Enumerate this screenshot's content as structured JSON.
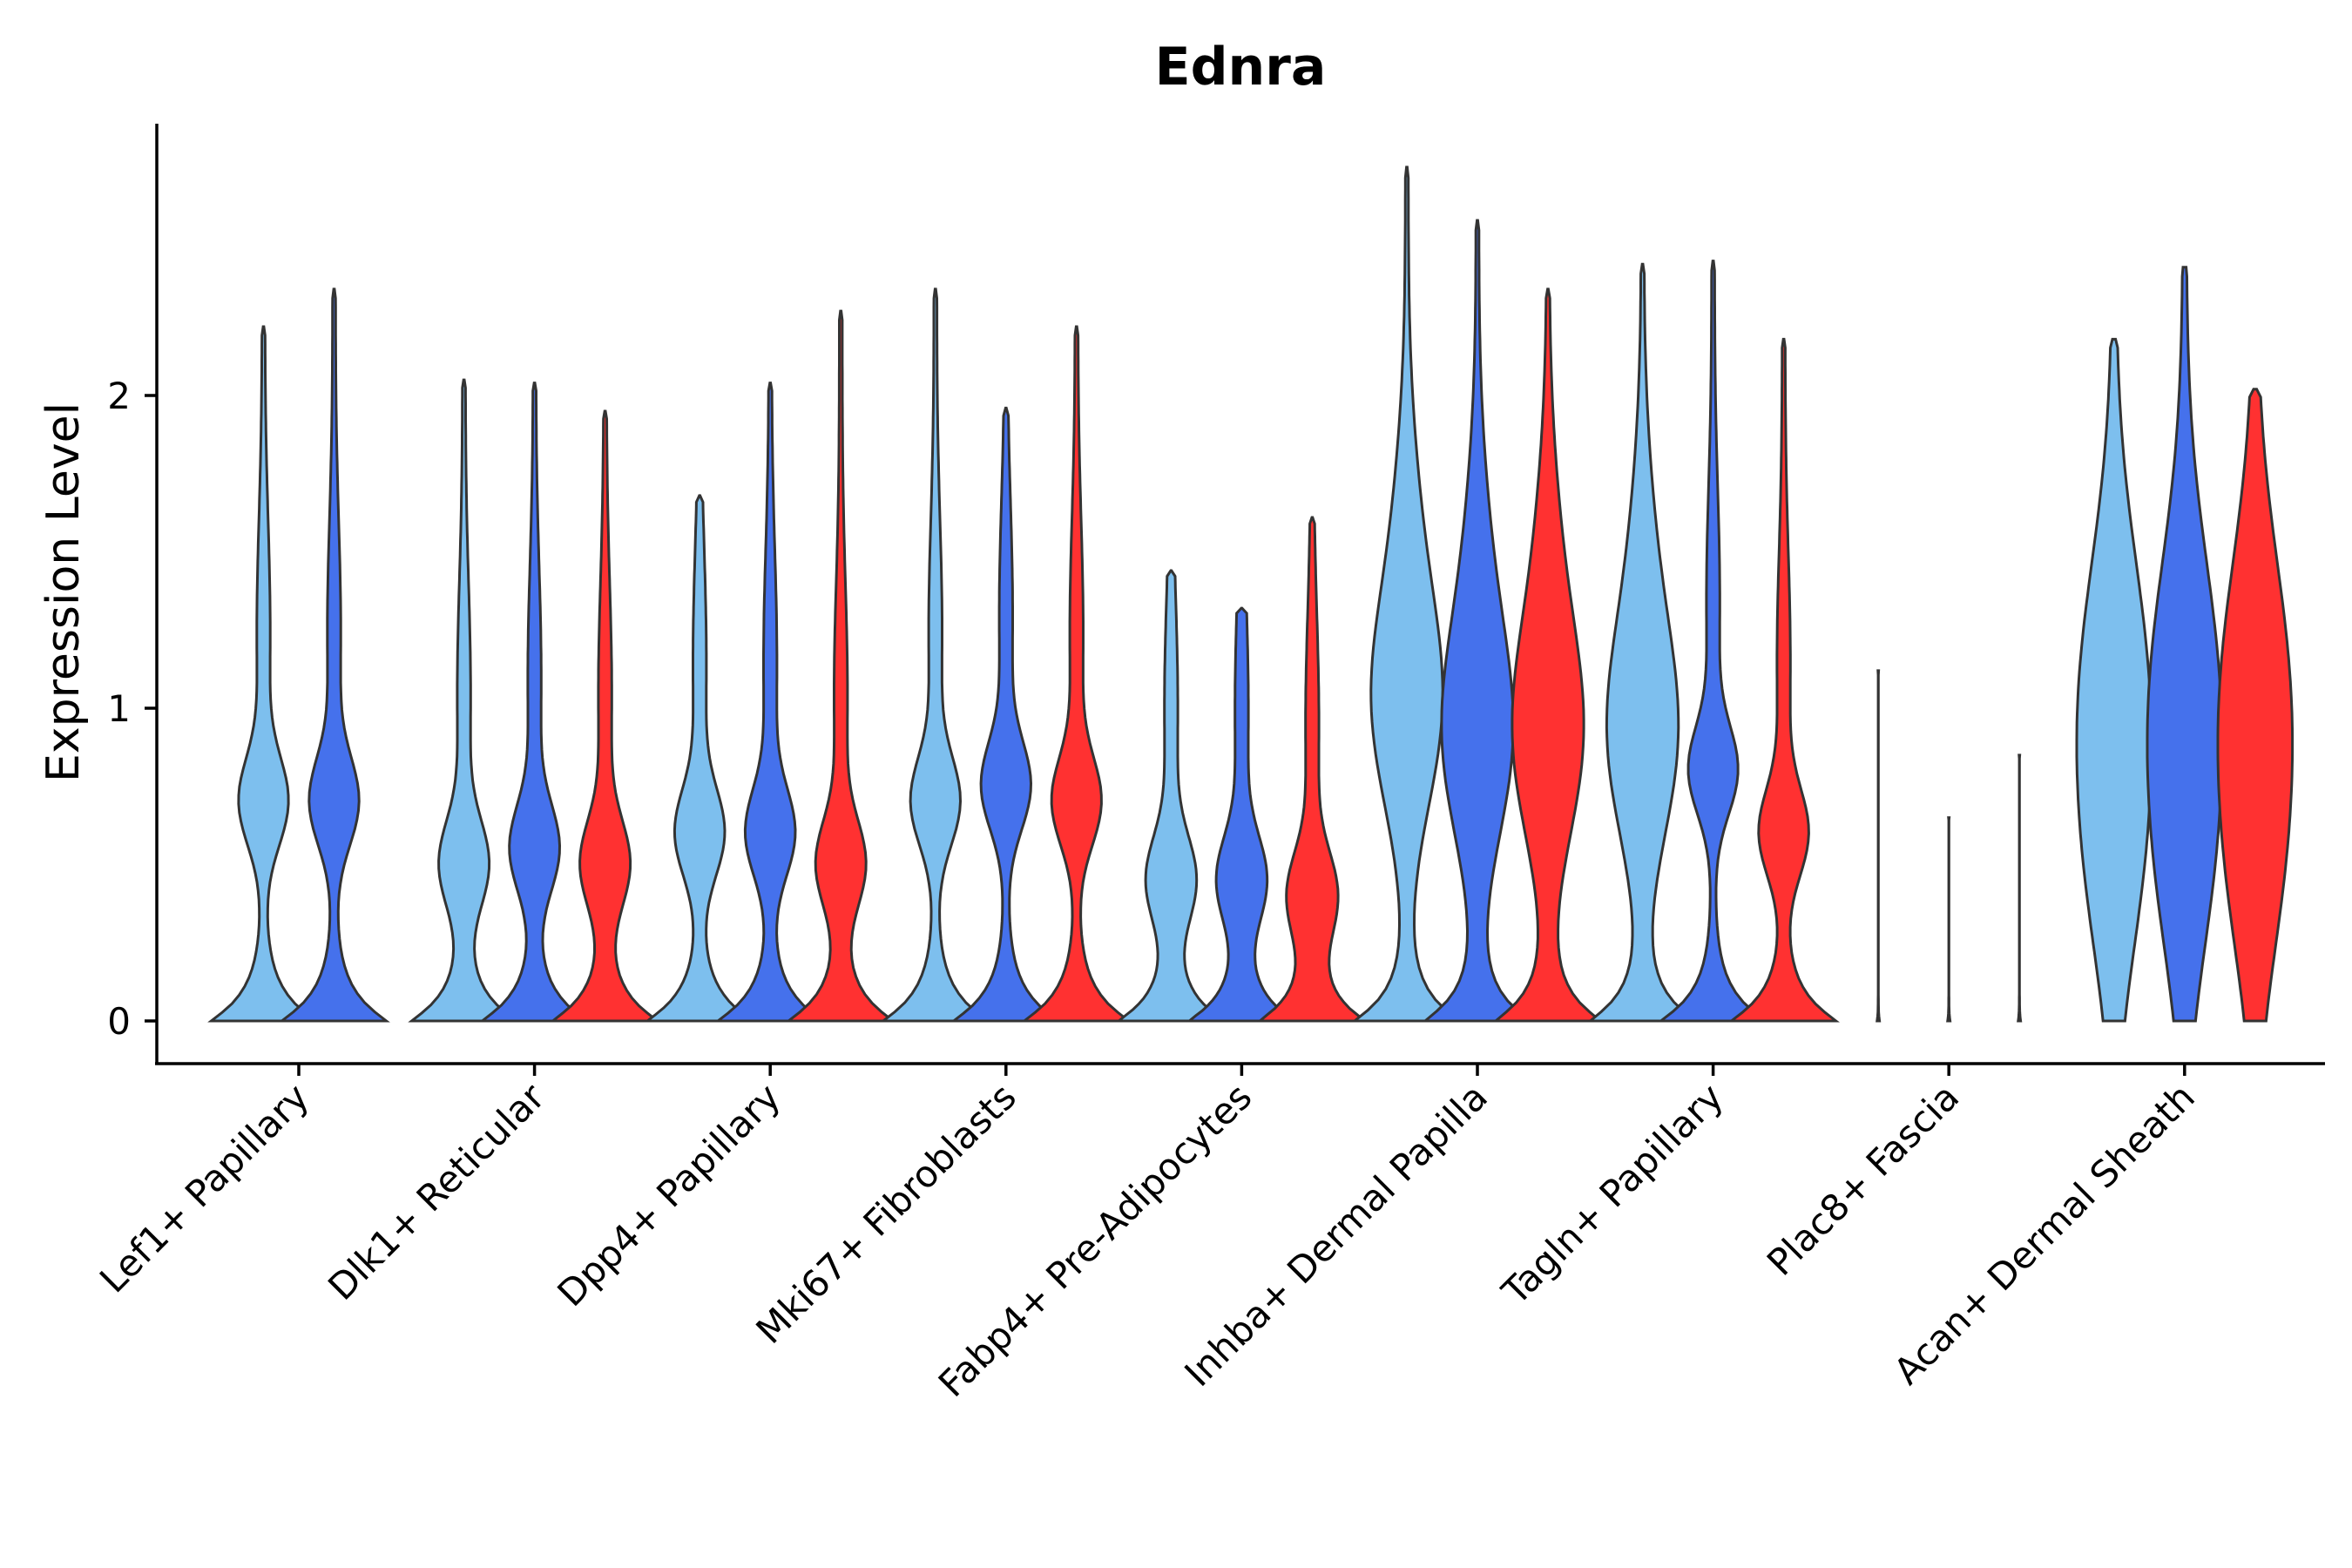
{
  "chart_data": {
    "type": "violin",
    "title": "Ednra",
    "xlabel": "",
    "ylabel": "Expression Level",
    "y_ticks": [
      0,
      1,
      2
    ],
    "ylim": [
      -0.14,
      2.9
    ],
    "grid": false,
    "legend": "none",
    "group_colors": {
      "g1": "#7DBFEE",
      "g2": "#4571EC",
      "g3": "#FF3131"
    },
    "categories": [
      {
        "name": "Lef1+ Papillary",
        "violins": [
          {
            "group": "g1",
            "max": 2.22,
            "mode": 0.7
          },
          {
            "group": "g2",
            "max": 2.34,
            "mode": 0.7
          }
        ]
      },
      {
        "name": "Dlk1+ Reticular",
        "violins": [
          {
            "group": "g1",
            "max": 2.05,
            "mode": 0.5
          },
          {
            "group": "g2",
            "max": 2.04,
            "mode": 0.55
          },
          {
            "group": "g3",
            "max": 1.95,
            "mode": 0.5
          }
        ]
      },
      {
        "name": "Dpp4+ Papillary",
        "violins": [
          {
            "group": "g1",
            "max": 1.68,
            "mode": 0.6
          },
          {
            "group": "g2",
            "max": 2.04,
            "mode": 0.6
          },
          {
            "group": "g3",
            "max": 2.27,
            "mode": 0.5
          }
        ]
      },
      {
        "name": "Mki67+ Fibroblasts",
        "violins": [
          {
            "group": "g1",
            "max": 2.34,
            "mode": 0.7
          },
          {
            "group": "g2",
            "max": 1.96,
            "mode": 0.75
          },
          {
            "group": "g3",
            "max": 2.22,
            "mode": 0.7
          }
        ]
      },
      {
        "name": "Fabp4+ Pre-Adipocytes",
        "violins": [
          {
            "group": "g1",
            "max": 1.44,
            "mode": 0.45
          },
          {
            "group": "g2",
            "max": 1.32,
            "mode": 0.45
          },
          {
            "group": "g3",
            "max": 1.61,
            "mode": 0.4
          }
        ]
      },
      {
        "name": "Inhba+ Dermal Papilla",
        "violins": [
          {
            "group": "g1",
            "max": 2.73,
            "mode": 1.0
          },
          {
            "group": "g2",
            "max": 2.56,
            "mode": 0.9
          },
          {
            "group": "g3",
            "max": 2.34,
            "mode": 0.9
          }
        ]
      },
      {
        "name": "Tagln+ Papillary",
        "violins": [
          {
            "group": "g1",
            "max": 2.42,
            "mode": 0.9
          },
          {
            "group": "g2",
            "max": 2.43,
            "mode": 0.8
          },
          {
            "group": "g3",
            "max": 2.18,
            "mode": 0.6
          }
        ]
      },
      {
        "name": "Plac8+ Fascia",
        "violins": [
          {
            "group": "g1",
            "max": 1.12,
            "mode": 0
          },
          {
            "group": "g2",
            "max": 0.65,
            "mode": 0
          },
          {
            "group": "g3",
            "max": 0.85,
            "mode": 0
          }
        ]
      },
      {
        "name": "Acan+ Dermal Sheath",
        "violins": [
          {
            "group": "g1",
            "max": 2.18,
            "mode": 1.1
          },
          {
            "group": "g2",
            "max": 2.41,
            "mode": 1.1
          },
          {
            "group": "g3",
            "max": 2.02,
            "mode": 1.1
          }
        ]
      }
    ]
  }
}
